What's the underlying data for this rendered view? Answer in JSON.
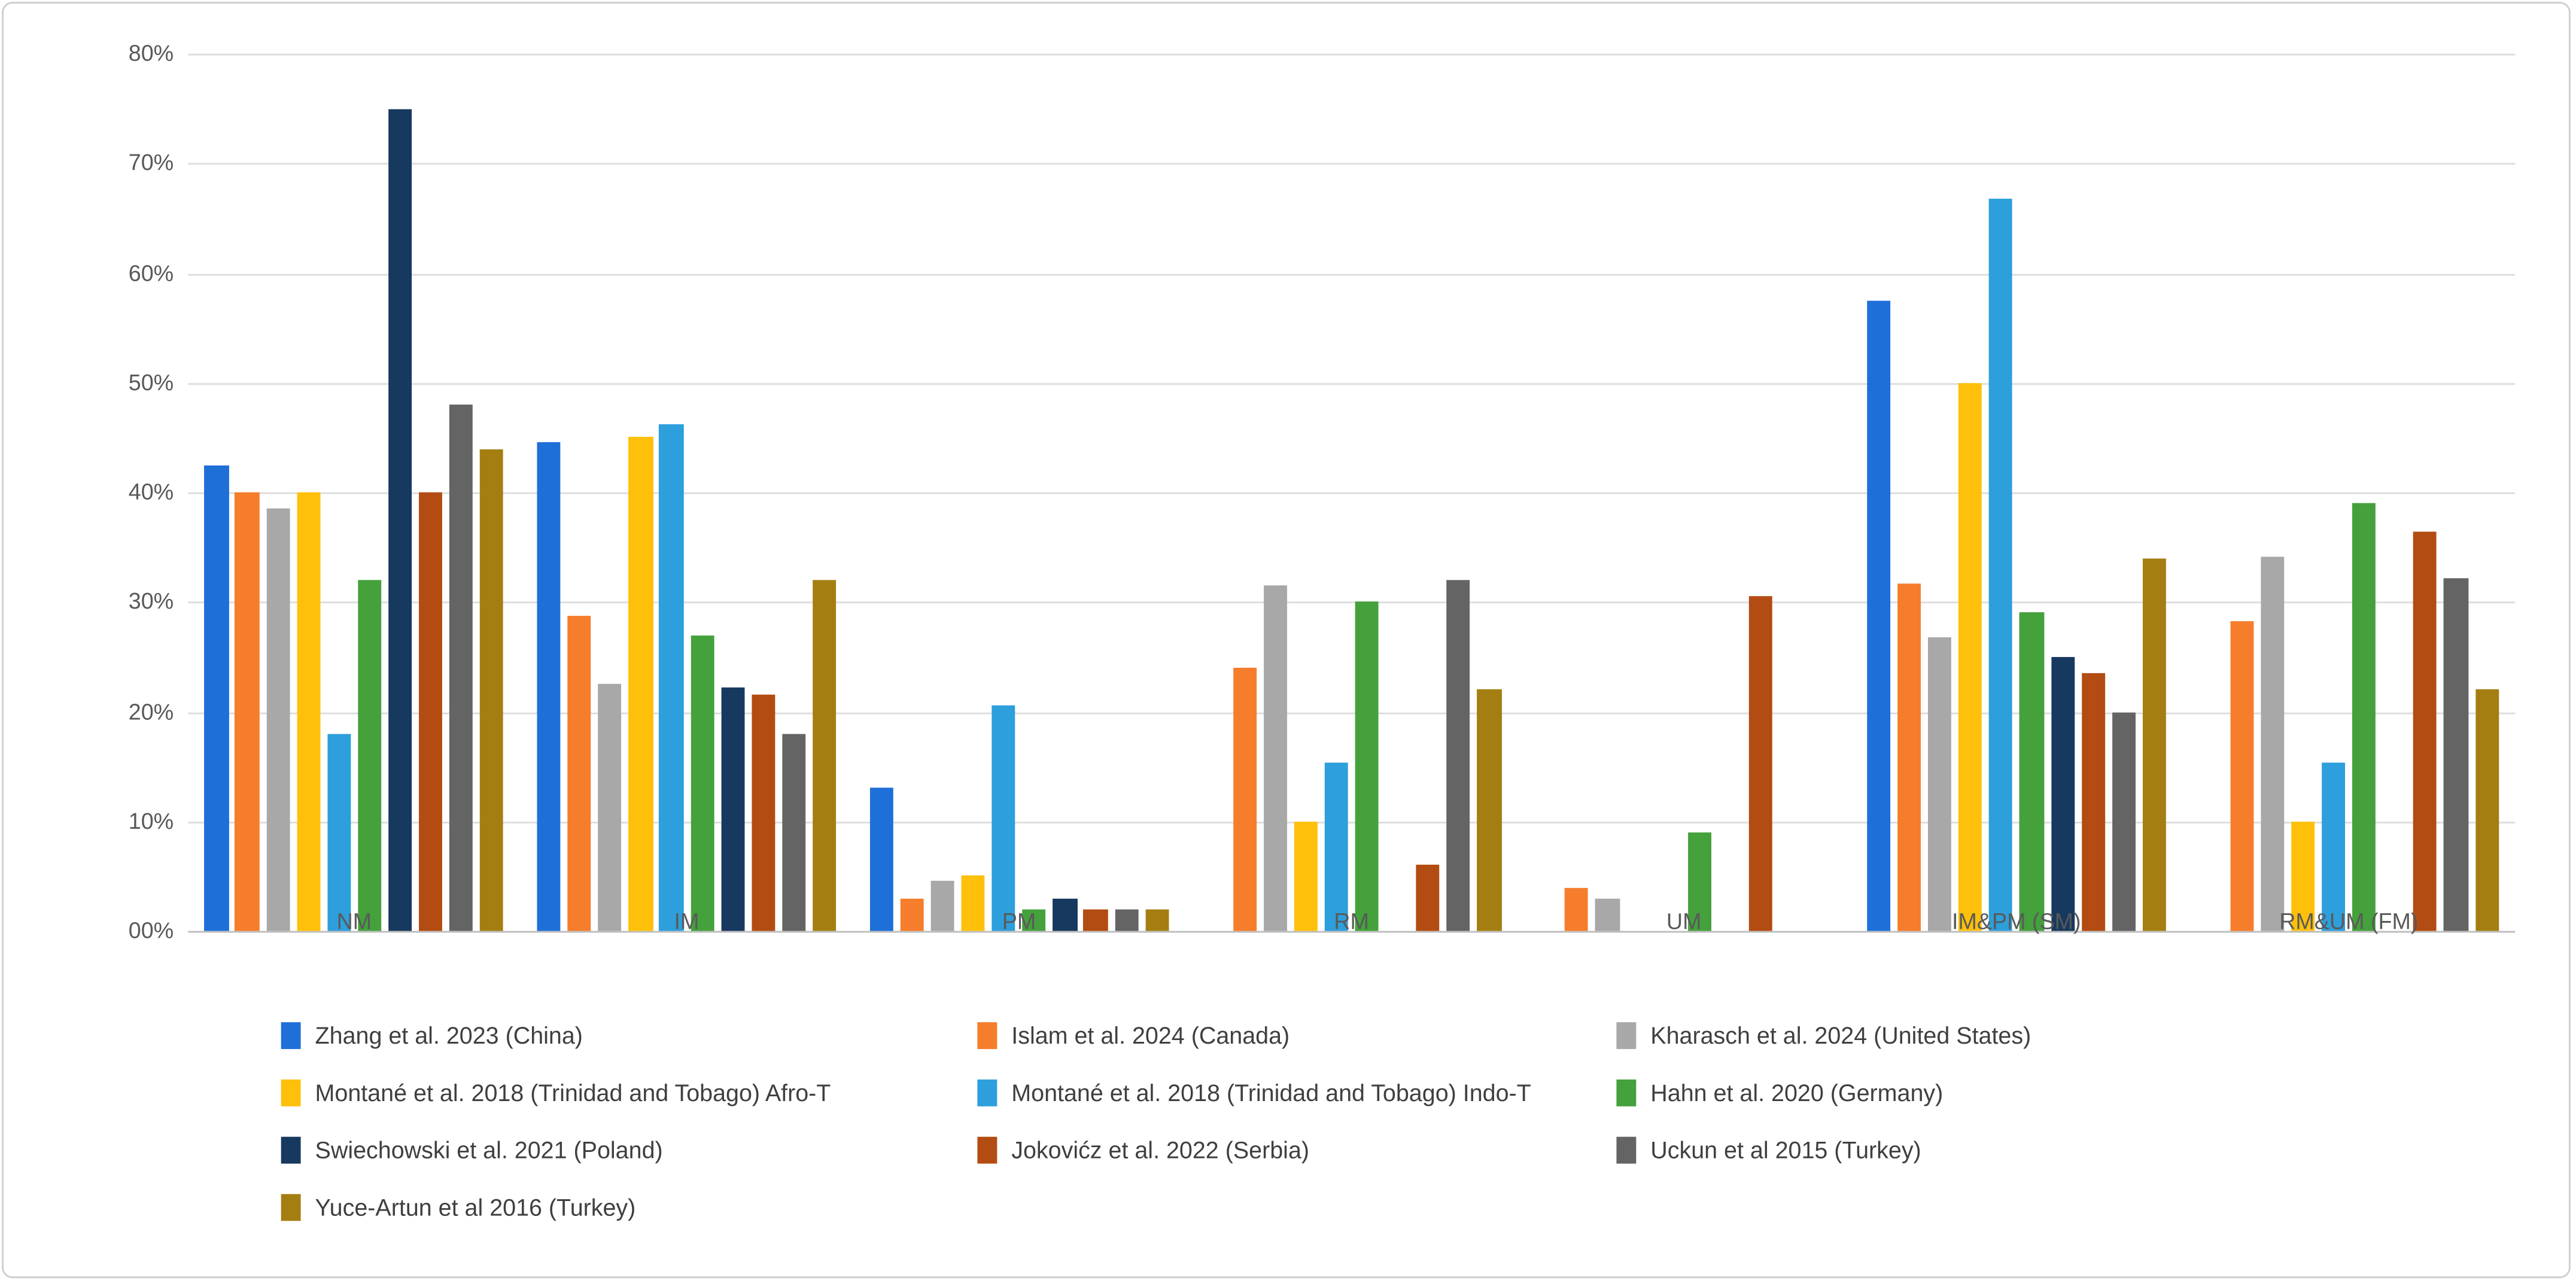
{
  "chart_data": {
    "type": "bar",
    "title": "",
    "xlabel": "",
    "ylabel": "",
    "grid": true,
    "legend_position": "bottom",
    "legend_columns": 3,
    "categories": [
      "NM",
      "IM",
      "PM",
      "RM",
      "UM",
      "IM&PM (SM)",
      "RM&UM (FM)"
    ],
    "y_axis": {
      "min": 0,
      "max": 80,
      "step": 10,
      "labels": [
        "00%",
        "10%",
        "20%",
        "30%",
        "40%",
        "50%",
        "60%",
        "70%",
        "80%"
      ]
    },
    "series": [
      {
        "name": "Zhang et al. 2023 (China)",
        "color": "#1E6FD8",
        "values": [
          42.5,
          44.5,
          13,
          null,
          null,
          57.5,
          null
        ]
      },
      {
        "name": "Islam et al. 2024 (Canada)",
        "color": "#F57D2C",
        "values": [
          40,
          28.8,
          3,
          24,
          4,
          31.6,
          28.2
        ]
      },
      {
        "name": "Kharasch et al. 2024 (United States)",
        "color": "#A8A8A8",
        "values": [
          38.5,
          22.5,
          4.5,
          31.5,
          3,
          26.8,
          34.2
        ]
      },
      {
        "name": "Montané et al. 2018 (Trinidad and Tobago) Afro-T",
        "color": "#FFC00B",
        "values": [
          40,
          45,
          5,
          10,
          null,
          50,
          10
        ]
      },
      {
        "name": "Montané et al. 2018 (Trinidad and Tobago) Indo-T",
        "color": "#2D9FDC",
        "values": [
          18,
          46.2,
          20.5,
          15.3,
          null,
          66.8,
          15.3
        ]
      },
      {
        "name": "Hahn et al. 2020 (Germany)",
        "color": "#44A13C",
        "values": [
          32,
          27,
          2,
          30,
          9,
          29,
          39
        ]
      },
      {
        "name": "Swiechowski et al. 2021 (Poland)",
        "color": "#17395F",
        "values": [
          75,
          22.2,
          3,
          null,
          null,
          25,
          null
        ]
      },
      {
        "name": "Jokovićz et al. 2022 (Serbia)",
        "color": "#B34C12",
        "values": [
          40,
          21.5,
          2,
          6,
          30.5,
          23.5,
          36.4
        ]
      },
      {
        "name": "Uckun et al 2015 (Turkey)",
        "color": "#646464",
        "values": [
          48,
          18,
          2,
          32,
          null,
          20,
          32.2
        ]
      },
      {
        "name": "Yuce-Artun et al 2016 (Turkey)",
        "color": "#A57E12",
        "values": [
          44,
          32,
          2,
          22,
          null,
          34,
          22
        ]
      }
    ]
  },
  "colors": {
    "background": "#FFFFFF",
    "border": "#CFCFD4",
    "gridline": "#DEDEDE",
    "axis_line": "#BFBFBF",
    "axis_text": "#595959",
    "legend_text": "#3F3F3F"
  }
}
